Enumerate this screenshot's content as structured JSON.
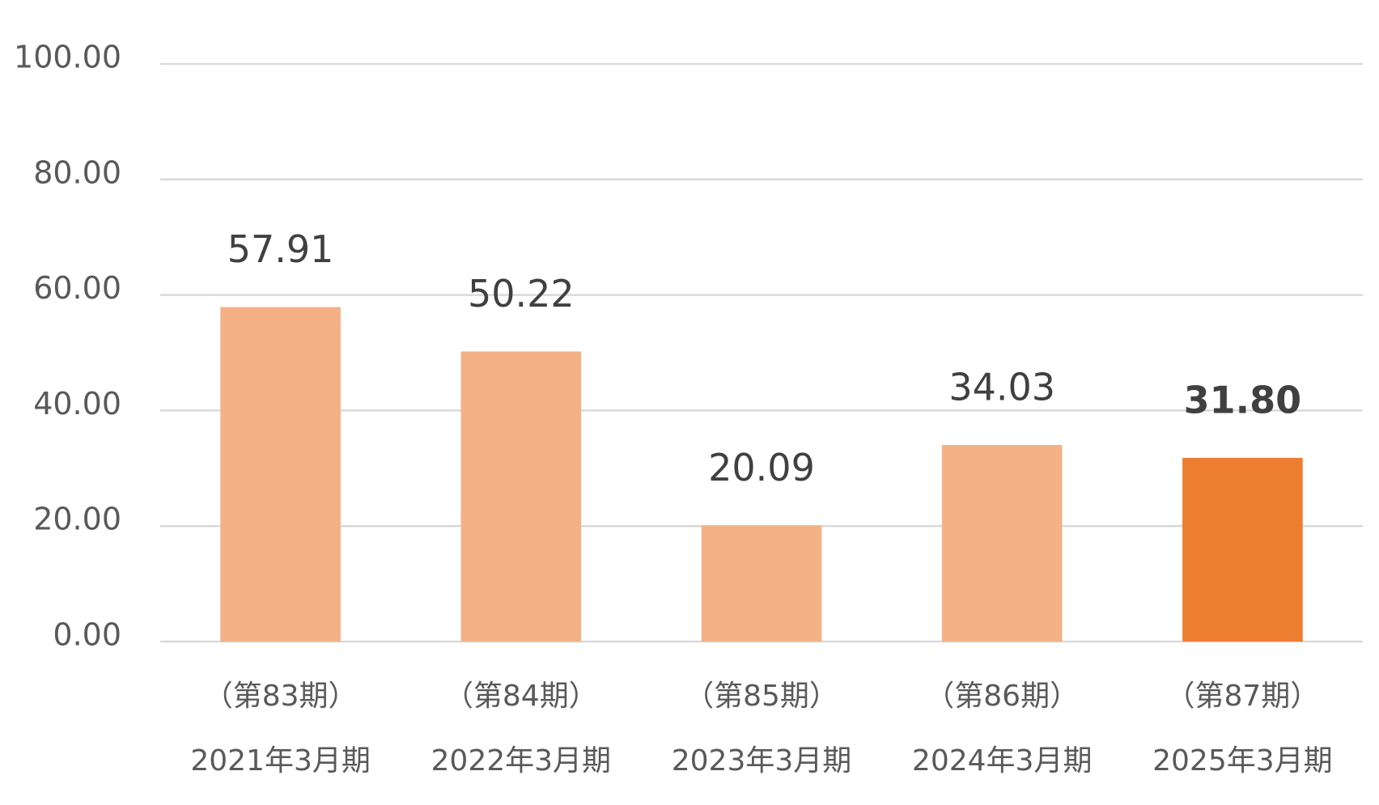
{
  "chart_data": {
    "type": "bar",
    "categories": [
      [
        "（第83期）",
        "2021年3月期"
      ],
      [
        "（第84期）",
        "2022年3月期"
      ],
      [
        "（第85期）",
        "2023年3月期"
      ],
      [
        "（第86期）",
        "2024年3月期"
      ],
      [
        "（第87期）",
        "2025年3月期"
      ]
    ],
    "values": [
      57.91,
      50.22,
      20.09,
      34.03,
      31.8
    ],
    "value_labels": [
      "57.91",
      "50.22",
      "20.09",
      "34.03",
      "31.80"
    ],
    "colors": [
      "#f3b185",
      "#f3b185",
      "#f3b185",
      "#f3b185",
      "#ed7d31"
    ],
    "highlight": 4,
    "ylim": [
      0,
      100
    ],
    "yticks": [
      {
        "value": 0,
        "label": "0.00"
      },
      {
        "value": 20,
        "label": "20.00"
      },
      {
        "value": 40,
        "label": "40.00"
      },
      {
        "value": 60,
        "label": "60.00"
      },
      {
        "value": 80,
        "label": "80.00"
      },
      {
        "value": 100,
        "label": "100.00"
      }
    ],
    "grid": true
  }
}
